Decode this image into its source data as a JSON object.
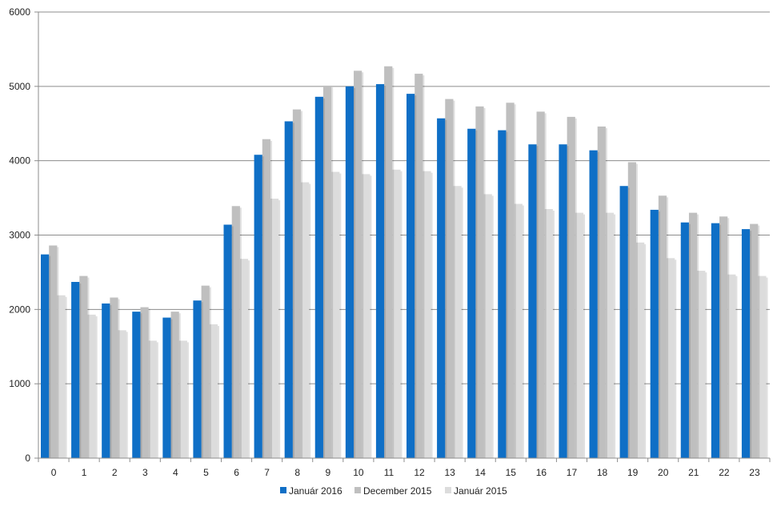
{
  "chart_data": {
    "type": "bar",
    "title": "",
    "xlabel": "",
    "ylabel": "",
    "ylim": [
      0,
      6000
    ],
    "yticks": [
      0,
      1000,
      2000,
      3000,
      4000,
      5000,
      6000
    ],
    "grid": true,
    "legend_position": "bottom",
    "categories": [
      "0",
      "1",
      "2",
      "3",
      "4",
      "5",
      "6",
      "7",
      "8",
      "9",
      "10",
      "11",
      "12",
      "13",
      "14",
      "15",
      "16",
      "17",
      "18",
      "19",
      "20",
      "21",
      "22",
      "23"
    ],
    "series": [
      {
        "name": "Január 2016",
        "color": "#0f6fc6",
        "values": [
          2740,
          2370,
          2080,
          1970,
          1890,
          2120,
          3140,
          4080,
          4530,
          4860,
          5000,
          5030,
          4900,
          4570,
          4430,
          4410,
          4220,
          4220,
          4140,
          3660,
          3340,
          3170,
          3160,
          3080
        ]
      },
      {
        "name": "December 2015",
        "color": "#bfbfbf",
        "values": [
          2860,
          2450,
          2160,
          2030,
          1970,
          2320,
          3390,
          4290,
          4690,
          5010,
          5210,
          5270,
          5170,
          4830,
          4730,
          4780,
          4660,
          4590,
          4460,
          3980,
          3530,
          3300,
          3250,
          3150
        ]
      },
      {
        "name": "Január 2015",
        "color": "#dcdcdc",
        "values": [
          2190,
          1930,
          1720,
          1580,
          1580,
          1800,
          2680,
          3490,
          3710,
          3850,
          3820,
          3880,
          3860,
          3660,
          3550,
          3420,
          3350,
          3300,
          3300,
          2900,
          2690,
          2520,
          2470,
          2450
        ]
      }
    ]
  }
}
